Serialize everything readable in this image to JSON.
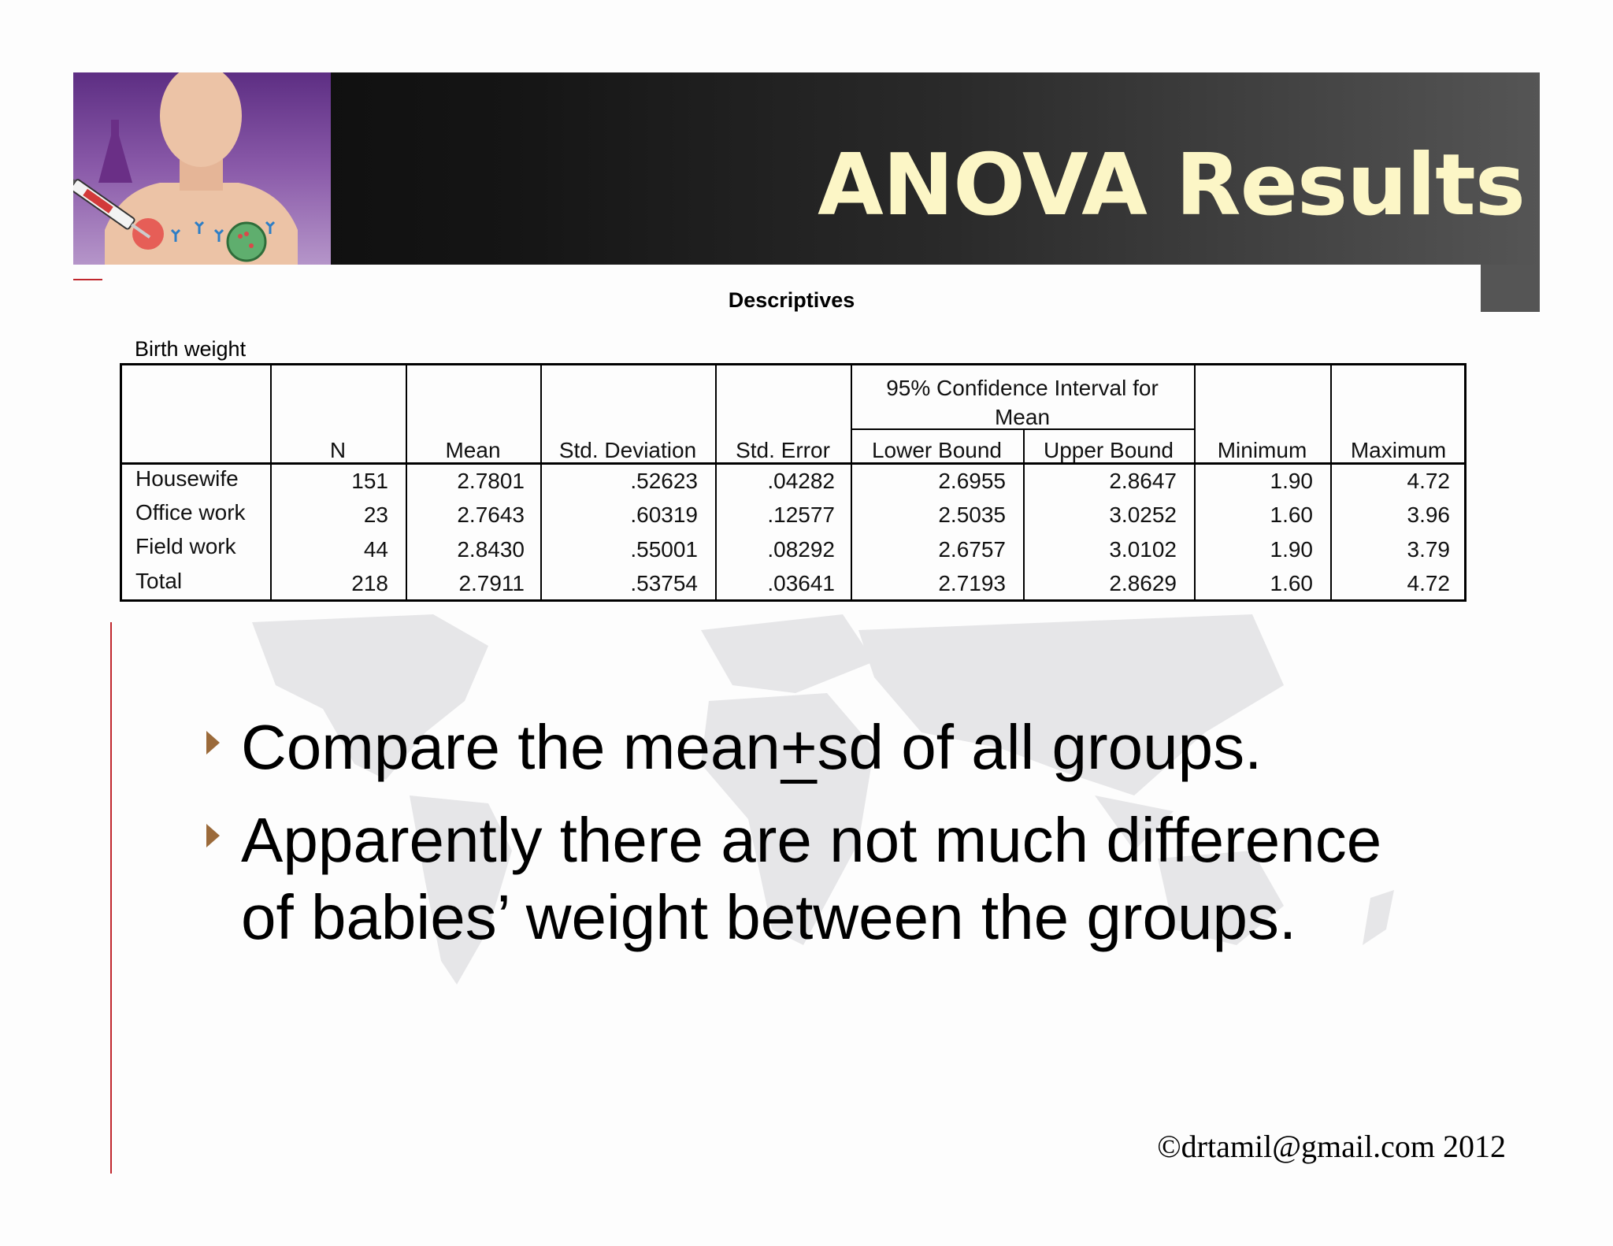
{
  "slide": {
    "title": "ANOVA Results",
    "footer": "©drtamil@gmail.com 2012",
    "accent_color": "#c0272d",
    "title_color": "#fcf6c6",
    "bullet_color": "#9b6a3a"
  },
  "table": {
    "title": "Descriptives",
    "variable": "Birth weight",
    "ci_header_line1": "95% Confidence Interval for",
    "ci_header_line2": "Mean",
    "columns": [
      "",
      "N",
      "Mean",
      "Std. Deviation",
      "Std. Error",
      "Lower Bound",
      "Upper Bound",
      "Minimum",
      "Maximum"
    ],
    "rows": [
      [
        "Housewife",
        "151",
        "2.7801",
        ".52623",
        ".04282",
        "2.6955",
        "2.8647",
        "1.90",
        "4.72"
      ],
      [
        "Office work",
        "23",
        "2.7643",
        ".60319",
        ".12577",
        "2.5035",
        "3.0252",
        "1.60",
        "3.96"
      ],
      [
        "Field work",
        "44",
        "2.8430",
        ".55001",
        ".08292",
        "2.6757",
        "3.0102",
        "1.90",
        "3.79"
      ],
      [
        "Total",
        "218",
        "2.7911",
        ".53754",
        ".03641",
        "2.7193",
        "2.8629",
        "1.60",
        "4.72"
      ]
    ]
  },
  "bullets": {
    "b1_pre": "Compare the mean",
    "b1_pm": "+",
    "b1_post": "sd of all groups.",
    "b2": "Apparently there are not much difference of babies’ weight between the groups."
  }
}
